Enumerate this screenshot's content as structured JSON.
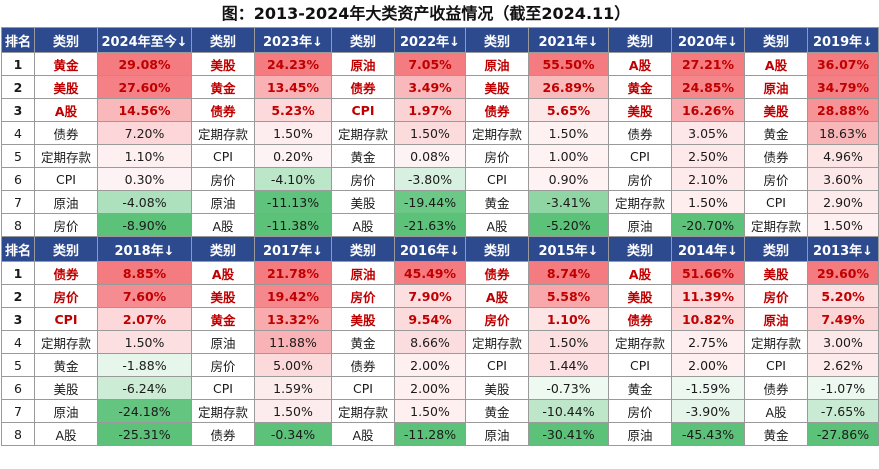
{
  "title": "图：2013-2024年大类资产收益情况（截至2024.11）",
  "colors": {
    "header_bg": "#2d4a8f",
    "header_text": "#ffffff",
    "top3_text": "#c00000",
    "positive_max": "#f47b80",
    "negative_max": "#5cc27a"
  },
  "blocks": [
    {
      "headers": [
        "排名",
        "类别",
        "2024年至今↓",
        "类别",
        "2023年↓",
        "类别",
        "2022年↓",
        "类别",
        "2021年↓",
        "类别",
        "2020年↓",
        "类别",
        "2019年↓"
      ],
      "columns": [
        {
          "year": "2024年至今",
          "min": -8.9,
          "max": 29.08
        },
        {
          "year": "2023年",
          "min": -11.38,
          "max": 24.23
        },
        {
          "year": "2022年",
          "min": -21.63,
          "max": 7.05
        },
        {
          "year": "2021年",
          "min": -5.2,
          "max": 55.5
        },
        {
          "year": "2020年",
          "min": -20.7,
          "max": 27.21
        },
        {
          "year": "2019年",
          "min": 1.5,
          "max": 36.07
        }
      ],
      "rows": [
        {
          "rank": "1",
          "cells": [
            [
              "黄金",
              "29.08%",
              29.08
            ],
            [
              "美股",
              "24.23%",
              24.23
            ],
            [
              "原油",
              "7.05%",
              7.05
            ],
            [
              "原油",
              "55.50%",
              55.5
            ],
            [
              "A股",
              "27.21%",
              27.21
            ],
            [
              "A股",
              "36.07%",
              36.07
            ]
          ]
        },
        {
          "rank": "2",
          "cells": [
            [
              "美股",
              "27.60%",
              27.6
            ],
            [
              "黄金",
              "13.45%",
              13.45
            ],
            [
              "债券",
              "3.49%",
              3.49
            ],
            [
              "美股",
              "26.89%",
              26.89
            ],
            [
              "黄金",
              "24.85%",
              24.85
            ],
            [
              "原油",
              "34.79%",
              34.79
            ]
          ]
        },
        {
          "rank": "3",
          "cells": [
            [
              "A股",
              "14.56%",
              14.56
            ],
            [
              "债券",
              "5.23%",
              5.23
            ],
            [
              "CPI",
              "1.97%",
              1.97
            ],
            [
              "债券",
              "5.65%",
              5.65
            ],
            [
              "美股",
              "16.26%",
              16.26
            ],
            [
              "美股",
              "28.88%",
              28.88
            ]
          ]
        },
        {
          "rank": "4",
          "cells": [
            [
              "债券",
              "7.20%",
              7.2
            ],
            [
              "定期存款",
              "1.50%",
              1.5
            ],
            [
              "定期存款",
              "1.50%",
              1.5
            ],
            [
              "定期存款",
              "1.50%",
              1.5
            ],
            [
              "债券",
              "3.05%",
              3.05
            ],
            [
              "黄金",
              "18.63%",
              18.63
            ]
          ]
        },
        {
          "rank": "5",
          "cells": [
            [
              "定期存款",
              "1.10%",
              1.1
            ],
            [
              "CPI",
              "0.20%",
              0.2
            ],
            [
              "黄金",
              "0.08%",
              0.08
            ],
            [
              "房价",
              "1.00%",
              1.0
            ],
            [
              "CPI",
              "2.50%",
              2.5
            ],
            [
              "债券",
              "4.96%",
              4.96
            ]
          ]
        },
        {
          "rank": "6",
          "cells": [
            [
              "CPI",
              "0.30%",
              0.3
            ],
            [
              "房价",
              "-4.10%",
              -4.1
            ],
            [
              "房价",
              "-3.80%",
              -3.8
            ],
            [
              "CPI",
              "0.90%",
              0.9
            ],
            [
              "房价",
              "2.10%",
              2.1
            ],
            [
              "房价",
              "3.60%",
              3.6
            ]
          ]
        },
        {
          "rank": "7",
          "cells": [
            [
              "原油",
              "-4.08%",
              -4.08
            ],
            [
              "原油",
              "-11.13%",
              -11.13
            ],
            [
              "美股",
              "-19.44%",
              -19.44
            ],
            [
              "黄金",
              "-3.41%",
              -3.41
            ],
            [
              "定期存款",
              "1.50%",
              1.5
            ],
            [
              "CPI",
              "2.90%",
              2.9
            ]
          ]
        },
        {
          "rank": "8",
          "cells": [
            [
              "房价",
              "-8.90%",
              -8.9
            ],
            [
              "A股",
              "-11.38%",
              -11.38
            ],
            [
              "A股",
              "-21.63%",
              -21.63
            ],
            [
              "A股",
              "-5.20%",
              -5.2
            ],
            [
              "原油",
              "-20.70%",
              -20.7
            ],
            [
              "定期存款",
              "1.50%",
              1.5
            ]
          ]
        }
      ]
    },
    {
      "headers": [
        "排名",
        "类别",
        "2018年↓",
        "类别",
        "2017年↓",
        "类别",
        "2016年↓",
        "类别",
        "2015年↓",
        "类别",
        "2014年↓",
        "类别",
        "2013年↓"
      ],
      "columns": [
        {
          "year": "2018年",
          "min": -25.31,
          "max": 8.85
        },
        {
          "year": "2017年",
          "min": -0.34,
          "max": 21.78
        },
        {
          "year": "2016年",
          "min": -11.28,
          "max": 45.49
        },
        {
          "year": "2015年",
          "min": -30.41,
          "max": 8.74
        },
        {
          "year": "2014年",
          "min": -45.43,
          "max": 51.66
        },
        {
          "year": "2013年",
          "min": -27.86,
          "max": 29.6
        }
      ],
      "rows": [
        {
          "rank": "1",
          "cells": [
            [
              "债券",
              "8.85%",
              8.85
            ],
            [
              "A股",
              "21.78%",
              21.78
            ],
            [
              "原油",
              "45.49%",
              45.49
            ],
            [
              "债券",
              "8.74%",
              8.74
            ],
            [
              "A股",
              "51.66%",
              51.66
            ],
            [
              "美股",
              "29.60%",
              29.6
            ]
          ]
        },
        {
          "rank": "2",
          "cells": [
            [
              "房价",
              "7.60%",
              7.6
            ],
            [
              "美股",
              "19.42%",
              19.42
            ],
            [
              "房价",
              "7.90%",
              7.9
            ],
            [
              "A股",
              "5.58%",
              5.58
            ],
            [
              "美股",
              "11.39%",
              11.39
            ],
            [
              "房价",
              "5.20%",
              5.2
            ]
          ]
        },
        {
          "rank": "3",
          "cells": [
            [
              "CPI",
              "2.07%",
              2.07
            ],
            [
              "黄金",
              "13.32%",
              13.32
            ],
            [
              "美股",
              "9.54%",
              9.54
            ],
            [
              "房价",
              "1.10%",
              1.1
            ],
            [
              "债券",
              "10.82%",
              10.82
            ],
            [
              "原油",
              "7.49%",
              7.49
            ]
          ]
        },
        {
          "rank": "4",
          "cells": [
            [
              "定期存款",
              "1.50%",
              1.5
            ],
            [
              "原油",
              "11.88%",
              11.88
            ],
            [
              "黄金",
              "8.66%",
              8.66
            ],
            [
              "定期存款",
              "1.50%",
              1.5
            ],
            [
              "定期存款",
              "2.75%",
              2.75
            ],
            [
              "定期存款",
              "3.00%",
              3.0
            ]
          ]
        },
        {
          "rank": "5",
          "cells": [
            [
              "黄金",
              "-1.88%",
              -1.88
            ],
            [
              "房价",
              "5.00%",
              5.0
            ],
            [
              "债券",
              "2.00%",
              2.0
            ],
            [
              "CPI",
              "1.44%",
              1.44
            ],
            [
              "CPI",
              "2.00%",
              2.0
            ],
            [
              "CPI",
              "2.62%",
              2.62
            ]
          ]
        },
        {
          "rank": "6",
          "cells": [
            [
              "美股",
              "-6.24%",
              -6.24
            ],
            [
              "CPI",
              "1.59%",
              1.59
            ],
            [
              "CPI",
              "2.00%",
              2.0
            ],
            [
              "美股",
              "-0.73%",
              -0.73
            ],
            [
              "黄金",
              "-1.59%",
              -1.59
            ],
            [
              "债券",
              "-1.07%",
              -1.07
            ]
          ]
        },
        {
          "rank": "7",
          "cells": [
            [
              "原油",
              "-24.18%",
              -24.18
            ],
            [
              "定期存款",
              "1.50%",
              1.5
            ],
            [
              "定期存款",
              "1.50%",
              1.5
            ],
            [
              "黄金",
              "-10.44%",
              -10.44
            ],
            [
              "房价",
              "-3.90%",
              -3.9
            ],
            [
              "A股",
              "-7.65%",
              -7.65
            ]
          ]
        },
        {
          "rank": "8",
          "cells": [
            [
              "A股",
              "-25.31%",
              -25.31
            ],
            [
              "债券",
              "-0.34%",
              -0.34
            ],
            [
              "A股",
              "-11.28%",
              -11.28
            ],
            [
              "原油",
              "-30.41%",
              -30.41
            ],
            [
              "原油",
              "-45.43%",
              -45.43
            ],
            [
              "黄金",
              "-27.86%",
              -27.86
            ]
          ]
        }
      ]
    }
  ]
}
